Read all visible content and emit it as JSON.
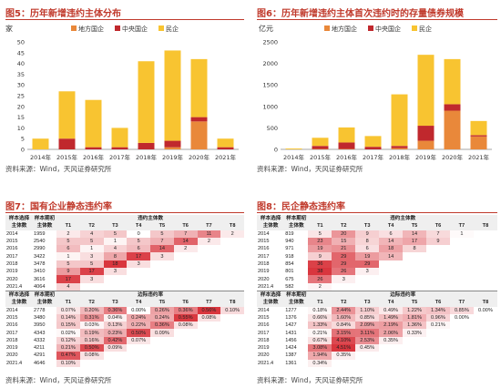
{
  "fig5": {
    "title": "图5：历年新增违约主体分布",
    "unit": "家",
    "legend": [
      "地方国企",
      "中央国企",
      "民企"
    ],
    "source": "资料来源：Wind，天风证券研究所"
  },
  "fig6": {
    "title": "图6：历年新增违约主体首次违约时的存量债券规模",
    "unit": "亿元",
    "legend": [
      "地方国企",
      "中央国企",
      "民企"
    ],
    "source": "资料来源：Wind，天风证券研究所"
  },
  "fig7": {
    "title": "图7：国有企业静态违约率",
    "source": "资料来源：Wind，天风证券研究所",
    "hdr_sample": "样本选择",
    "hdr_period": "样本期初",
    "hdr_subject": "主体数",
    "group1": "违约主体数",
    "group2": "边际违约率",
    "cols": [
      "T1",
      "T2",
      "T3",
      "T4",
      "T5",
      "T6",
      "T7",
      "T8"
    ],
    "top": [
      {
        "year": "2014",
        "n": "1959",
        "c": [
          "2",
          "4",
          "5",
          "0",
          "5",
          "7",
          "11",
          "2"
        ]
      },
      {
        "year": "2015",
        "n": "2540",
        "c": [
          "5",
          "5",
          "1",
          "5",
          "7",
          "14",
          "2",
          ""
        ]
      },
      {
        "year": "2016",
        "n": "2990",
        "c": [
          "6",
          "1",
          "4",
          "6",
          "14",
          "2",
          "",
          ""
        ]
      },
      {
        "year": "2017",
        "n": "3422",
        "c": [
          "1",
          "3",
          "8",
          "17",
          "3",
          "",
          "",
          ""
        ]
      },
      {
        "year": "2018",
        "n": "3478",
        "c": [
          "5",
          "5",
          "18",
          "3",
          "",
          "",
          "",
          ""
        ]
      },
      {
        "year": "2019",
        "n": "3410",
        "c": [
          "9",
          "17",
          "3",
          "",
          "",
          "",
          "",
          ""
        ]
      },
      {
        "year": "2020",
        "n": "3616",
        "c": [
          "17",
          "3",
          "",
          "",
          "",
          "",
          "",
          ""
        ]
      },
      {
        "year": "2021.4",
        "n": "4064",
        "c": [
          "4",
          "",
          "",
          "",
          "",
          "",
          "",
          ""
        ]
      }
    ],
    "bottom": [
      {
        "year": "2014",
        "n": "2778",
        "c": [
          "0.07%",
          "0.20%",
          "0.36%",
          "0.00%",
          "0.26%",
          "0.36%",
          "0.56%",
          "0.10%"
        ]
      },
      {
        "year": "2015",
        "n": "3480",
        "c": [
          "0.14%",
          "0.31%",
          "0.04%",
          "0.24%",
          "0.24%",
          "0.55%",
          "0.08%",
          ""
        ]
      },
      {
        "year": "2016",
        "n": "3950",
        "c": [
          "0.15%",
          "0.03%",
          "0.13%",
          "0.22%",
          "0.36%",
          "0.08%",
          "",
          ""
        ]
      },
      {
        "year": "2017",
        "n": "4343",
        "c": [
          "0.02%",
          "0.19%",
          "0.23%",
          "0.50%",
          "0.09%",
          "",
          "",
          ""
        ]
      },
      {
        "year": "2018",
        "n": "4332",
        "c": [
          "0.12%",
          "0.16%",
          "0.42%",
          "0.07%",
          "",
          "",
          "",
          ""
        ]
      },
      {
        "year": "2019",
        "n": "4211",
        "c": [
          "0.21%",
          "0.50%",
          "0.09%",
          "",
          "",
          "",
          "",
          ""
        ]
      },
      {
        "year": "2020",
        "n": "4291",
        "c": [
          "0.47%",
          "0.08%",
          "",
          "",
          "",
          "",
          "",
          ""
        ]
      },
      {
        "year": "2021.4",
        "n": "4646",
        "c": [
          "0.10%",
          "",
          "",
          "",
          "",
          "",
          "",
          ""
        ]
      }
    ]
  },
  "fig8": {
    "title": "图8：民企静态违约率",
    "source": "资料来源：Wind，天风证券研究所",
    "hdr_sample": "样本选择",
    "hdr_period": "样本期初",
    "hdr_subject": "主体数",
    "group1": "违约主体数",
    "group2": "边际违约率",
    "cols": [
      "T1",
      "T2",
      "T3",
      "T4",
      "T5",
      "T6",
      "T7",
      "T8"
    ],
    "top": [
      {
        "year": "2014",
        "n": "819",
        "c": [
          "5",
          "20",
          "9",
          "6",
          "14",
          "7",
          "1",
          ""
        ]
      },
      {
        "year": "2015",
        "n": "940",
        "c": [
          "23",
          "15",
          "8",
          "14",
          "17",
          "9",
          "",
          ""
        ]
      },
      {
        "year": "2016",
        "n": "971",
        "c": [
          "19",
          "21",
          "6",
          "18",
          "8",
          "",
          "",
          ""
        ]
      },
      {
        "year": "2017",
        "n": "918",
        "c": [
          "9",
          "29",
          "19",
          "14",
          "",
          "",
          "",
          ""
        ]
      },
      {
        "year": "2018",
        "n": "854",
        "c": [
          "36",
          "29",
          "29",
          "",
          "",
          "",
          "",
          ""
        ]
      },
      {
        "year": "2019",
        "n": "801",
        "c": [
          "38",
          "26",
          "3",
          "",
          "",
          "",
          "",
          ""
        ]
      },
      {
        "year": "2020",
        "n": "675",
        "c": [
          "26",
          "3",
          "",
          "",
          "",
          "",
          "",
          ""
        ]
      },
      {
        "year": "2021.4",
        "n": "582",
        "c": [
          "2",
          "",
          "",
          "",
          "",
          "",
          "",
          ""
        ]
      }
    ],
    "bottom": [
      {
        "year": "2014",
        "n": "1277",
        "c": [
          "0.18%",
          "2.44%",
          "1.10%",
          "0.49%",
          "1.22%",
          "1.34%",
          "0.85%",
          "0.00%"
        ]
      },
      {
        "year": "2015",
        "n": "1376",
        "c": [
          "0.66%",
          "1.60%",
          "0.85%",
          "1.49%",
          "1.81%",
          "0.96%",
          "0.00%",
          ""
        ]
      },
      {
        "year": "2016",
        "n": "1427",
        "c": [
          "1.33%",
          "0.84%",
          "2.09%",
          "2.19%",
          "1.36%",
          "0.21%",
          "",
          ""
        ]
      },
      {
        "year": "2017",
        "n": "1431",
        "c": [
          "0.21%",
          "3.15%",
          "3.11%",
          "2.06%",
          "0.33%",
          "",
          "",
          ""
        ]
      },
      {
        "year": "2018",
        "n": "1456",
        "c": [
          "0.67%",
          "4.10%",
          "2.53%",
          "0.35%",
          "",
          "",
          "",
          ""
        ]
      },
      {
        "year": "2019",
        "n": "1424",
        "c": [
          "3.08%",
          "4.51%",
          "0.45%",
          "",
          "",
          "",
          "",
          ""
        ]
      },
      {
        "year": "2020",
        "n": "1387",
        "c": [
          "1.94%",
          "0.35%",
          "",
          "",
          "",
          "",
          "",
          ""
        ]
      },
      {
        "year": "2021.4",
        "n": "1361",
        "c": [
          "0.34%",
          "",
          "",
          "",
          "",
          "",
          "",
          ""
        ]
      }
    ]
  },
  "colors": {
    "local": "#e9883a",
    "central": "#c0282d",
    "private": "#f8c431",
    "title": "#c0392b",
    "heat": "#d9363e"
  },
  "chart_data": [
    {
      "type": "bar",
      "stacked": true,
      "categories": [
        "2014年",
        "2015年",
        "2016年",
        "2017年",
        "2018年",
        "2019年",
        "2020年",
        "2021年"
      ],
      "series": [
        {
          "name": "地方国企",
          "values": [
            0,
            0,
            0,
            0,
            0,
            1,
            13,
            0
          ]
        },
        {
          "name": "中央国企",
          "values": [
            0,
            5,
            1,
            1,
            3,
            3,
            2,
            1
          ]
        },
        {
          "name": "民企",
          "values": [
            5,
            22,
            22,
            9,
            38,
            42,
            27,
            4
          ]
        }
      ],
      "yticks": [
        "0",
        "5",
        "10",
        "15",
        "20",
        "25",
        "30",
        "35",
        "40",
        "45",
        "50"
      ],
      "ylim": [
        0,
        50
      ]
    },
    {
      "type": "bar",
      "stacked": true,
      "categories": [
        "2014年",
        "2015年",
        "2016年",
        "2017年",
        "2018年",
        "2019年",
        "2020年",
        "2021年"
      ],
      "series": [
        {
          "name": "地方国企",
          "values": [
            0,
            10,
            10,
            0,
            30,
            200,
            900,
            300
          ]
        },
        {
          "name": "中央国企",
          "values": [
            0,
            70,
            150,
            60,
            50,
            350,
            150,
            30
          ]
        },
        {
          "name": "民企",
          "values": [
            20,
            190,
            350,
            250,
            1200,
            1650,
            1050,
            330
          ]
        }
      ],
      "yticks": [
        "0",
        "500",
        "1000",
        "1500",
        "2000",
        "2500"
      ],
      "ylim": [
        0,
        2500
      ]
    }
  ]
}
